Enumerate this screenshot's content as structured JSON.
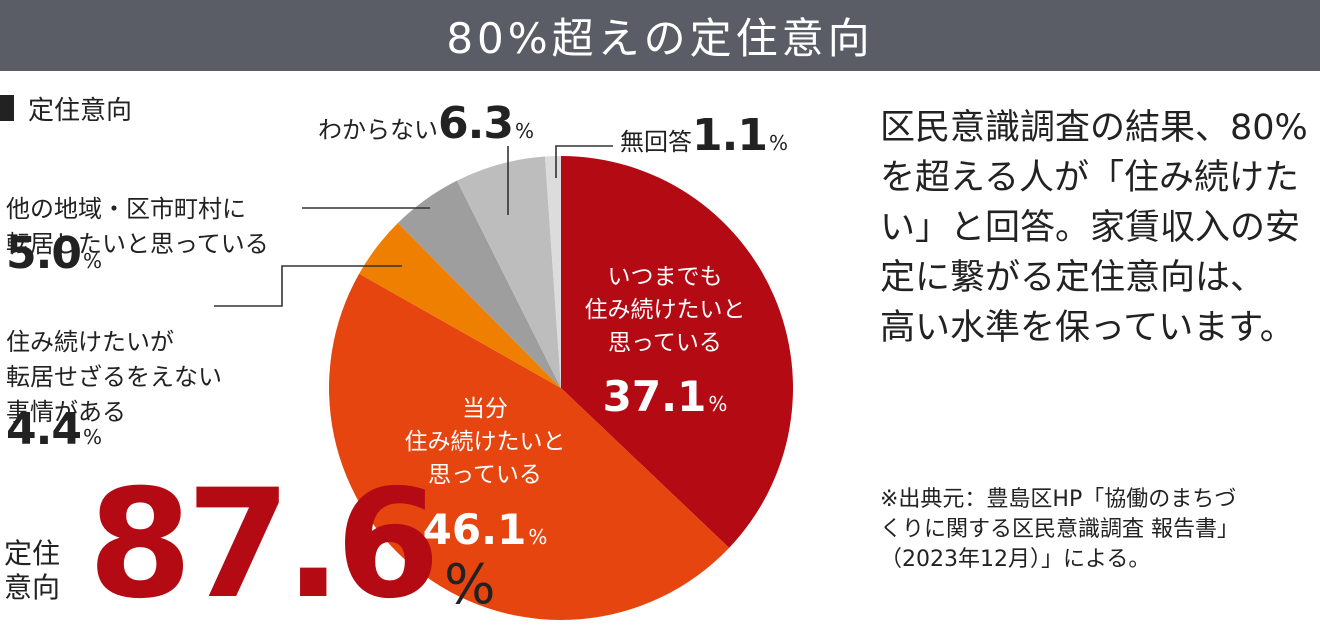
{
  "header": {
    "title": "80%超えの定住意向"
  },
  "section_label": "定住意向",
  "chart_data": {
    "type": "pie",
    "title": "定住意向",
    "start_angle_deg": 0,
    "direction": "clockwise",
    "slices": [
      {
        "label": "いつまでも\n住み続けたいと\n思っている",
        "value": 37.1,
        "value_text": "37.1",
        "color": "#b30a14"
      },
      {
        "label": "当分\n住み続けたいと\n思っている",
        "value": 46.1,
        "value_text": "46.1",
        "color": "#e6450f"
      },
      {
        "label": "住み続けたいが\n転居せざるをえない\n事情がある",
        "value": 4.4,
        "value_text": "4.4",
        "color": "#ef7f00"
      },
      {
        "label": "他の地域・区市町村に\n転居したいと思っている",
        "value": 5.0,
        "value_text": "5.0",
        "color": "#9e9e9e"
      },
      {
        "label": "わからない",
        "value": 6.3,
        "value_text": "6.3",
        "color": "#bdbdbd"
      },
      {
        "label": "無回答",
        "value": 1.1,
        "value_text": "1.1",
        "color": "#dcdcdc"
      }
    ],
    "percent_sign": "%"
  },
  "total": {
    "label_line1": "定住",
    "label_line2": "意向",
    "value": "87.6",
    "percent_sign": "%"
  },
  "description": "区民意識調査の結果、80%\nを超える人が「住み続けた\nい」と回答。家賃収入の安\n定に繋がる定住意向は、\n高い水準を保っています。",
  "source": "※出典元：豊島区HP「協働のまちづ\nくりに関する区民意識調査 報告書」\n（2023年12月）」による。",
  "colors": {
    "header_bg": "#5a5d66",
    "accent_red": "#b30a14"
  }
}
